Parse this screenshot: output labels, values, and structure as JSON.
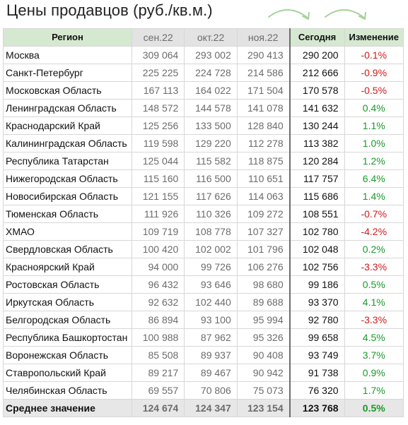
{
  "title": "Цены продавцов (руб./кв.м.)",
  "colors": {
    "positive": "#1a9a2a",
    "negative": "#d21a1a",
    "header_green": "#d5e8d0",
    "arrow": "#a6d29a"
  },
  "headers": [
    "Регион",
    "сен.22",
    "окт.22",
    "ноя.22",
    "Сегодня",
    "Изменение"
  ],
  "rows": [
    {
      "region": "Москва",
      "sep": "309 064",
      "oct": "293 002",
      "nov": "290 413",
      "today": "290 200",
      "change": "-0.1%"
    },
    {
      "region": "Санкт-Петербург",
      "sep": "225 225",
      "oct": "224 728",
      "nov": "214 586",
      "today": "212 666",
      "change": "-0.9%"
    },
    {
      "region": "Московская Область",
      "sep": "167 113",
      "oct": "164 022",
      "nov": "171 504",
      "today": "170 578",
      "change": "-0.5%"
    },
    {
      "region": "Ленинградская Область",
      "sep": "148 572",
      "oct": "144 578",
      "nov": "141 078",
      "today": "141 632",
      "change": "0.4%"
    },
    {
      "region": "Краснодарский Край",
      "sep": "125 256",
      "oct": "133 500",
      "nov": "128 840",
      "today": "130 244",
      "change": "1.1%"
    },
    {
      "region": "Калининградская Область",
      "sep": "119 598",
      "oct": "129 220",
      "nov": "112 278",
      "today": "113 382",
      "change": "1.0%"
    },
    {
      "region": "Республика Татарстан",
      "sep": "125 044",
      "oct": "115 582",
      "nov": "118 875",
      "today": "120 284",
      "change": "1.2%"
    },
    {
      "region": "Нижегородская Область",
      "sep": "115 160",
      "oct": "116 500",
      "nov": "110 651",
      "today": "117 757",
      "change": "6.4%"
    },
    {
      "region": "Новосибирская Область",
      "sep": "121 155",
      "oct": "117 626",
      "nov": "114 063",
      "today": "115 686",
      "change": "1.4%"
    },
    {
      "region": "Тюменская Область",
      "sep": "111 926",
      "oct": "110 326",
      "nov": "109 272",
      "today": "108 551",
      "change": "-0.7%"
    },
    {
      "region": "ХМАО",
      "sep": "109 719",
      "oct": "108 778",
      "nov": "107 327",
      "today": "102 780",
      "change": "-4.2%"
    },
    {
      "region": "Свердловская Область",
      "sep": "100 420",
      "oct": "102 002",
      "nov": "101 796",
      "today": "102 048",
      "change": "0.2%"
    },
    {
      "region": "Красноярский Край",
      "sep": "94 000",
      "oct": "99 726",
      "nov": "106 276",
      "today": "102 756",
      "change": "-3.3%"
    },
    {
      "region": "Ростовская Область",
      "sep": "96 432",
      "oct": "93 646",
      "nov": "98 680",
      "today": "99 186",
      "change": "0.5%"
    },
    {
      "region": "Иркутская Область",
      "sep": "92 632",
      "oct": "102 440",
      "nov": "89 688",
      "today": "93 370",
      "change": "4.1%"
    },
    {
      "region": "Белгородская Область",
      "sep": "86 894",
      "oct": "93 100",
      "nov": "95 994",
      "today": "92 780",
      "change": "-3.3%"
    },
    {
      "region": "Республика Башкортостан",
      "sep": "100 988",
      "oct": "87 962",
      "nov": "95 326",
      "today": "99 658",
      "change": "4.5%"
    },
    {
      "region": "Воронежская Область",
      "sep": "85 508",
      "oct": "89 937",
      "nov": "90 408",
      "today": "93 749",
      "change": "3.7%"
    },
    {
      "region": "Ставропольский Край",
      "sep": "89 217",
      "oct": "89 467",
      "nov": "90 942",
      "today": "91 738",
      "change": "0.9%"
    },
    {
      "region": "Челябинская Область",
      "sep": "69 557",
      "oct": "70 806",
      "nov": "75 073",
      "today": "76 320",
      "change": "1.7%"
    }
  ],
  "average": {
    "region": "Среднее значение",
    "sep": "124 674",
    "oct": "124 347",
    "nov": "123 154",
    "today": "123 768",
    "change": "0.5%"
  }
}
